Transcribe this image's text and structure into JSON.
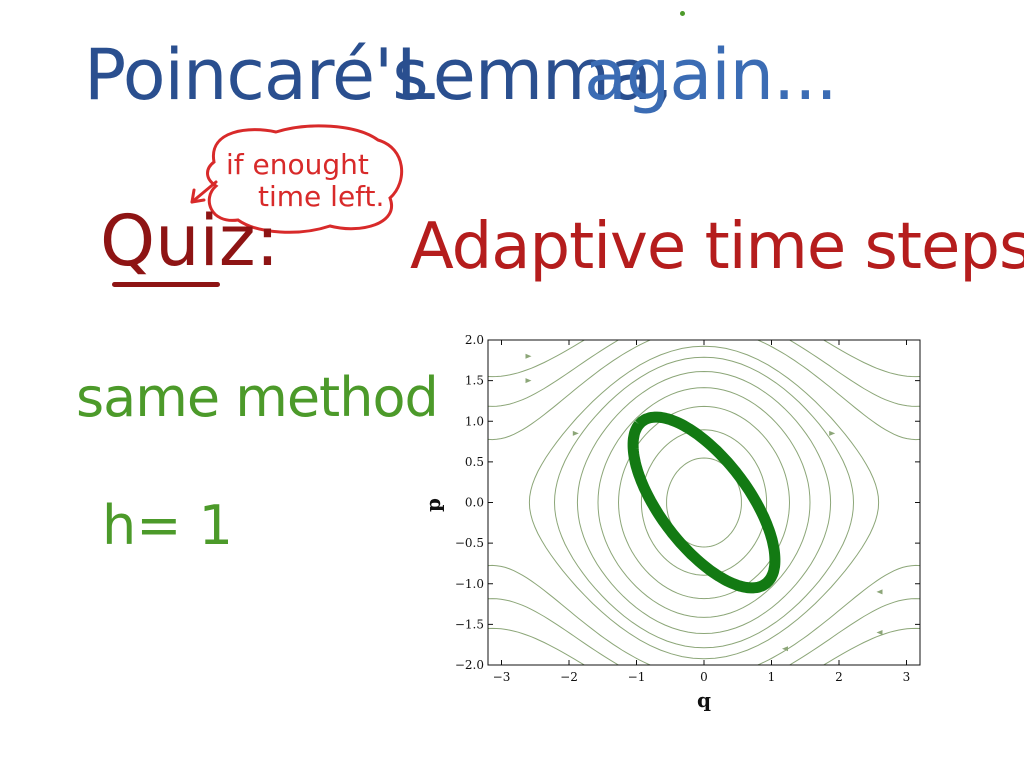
{
  "slide": {
    "title_part1": "Poincaré's",
    "title_part2": "Lemma,",
    "title_part3": "again...",
    "quiz_label": "Quiz:",
    "topic": "Adaptive time steps",
    "note_line1": "if enought",
    "note_line2": "time left.",
    "method_label": "same method",
    "step_label": "h= 1"
  },
  "colors": {
    "title": "#2a4f8f",
    "quiz": "#8e1414",
    "topic": "#b51d1d",
    "note": "#d82a2a",
    "method": "#4c9a2a",
    "stream": "#8ca678",
    "orbit": "#137a13"
  },
  "chart_data": {
    "type": "scatter",
    "title": "",
    "xlabel": "q",
    "ylabel": "p",
    "xlim": [
      -3.2,
      3.2
    ],
    "ylim": [
      -2.0,
      2.0
    ],
    "x_ticks": [
      -3,
      -2,
      -1,
      0,
      1,
      2,
      3
    ],
    "x_tick_labels": [
      "−3",
      "−2",
      "−1",
      "0",
      "1",
      "2",
      "3"
    ],
    "y_ticks": [
      -2.0,
      -1.5,
      -1.0,
      -0.5,
      0.0,
      0.5,
      1.0,
      1.5,
      2.0
    ],
    "y_tick_labels": [
      "−2.0",
      "−1.5",
      "−1.0",
      "−0.5",
      "0.0",
      "0.5",
      "1.0",
      "1.5",
      "2.0"
    ],
    "grid": false,
    "background": "streamplot of pendulum phase portrait",
    "series": [
      {
        "values": "closed orbit of numerical solution",
        "center": [
          0.0,
          0.0
        ],
        "semi_major": 1.36,
        "semi_minor": 0.6,
        "rotation_deg": 135
      }
    ]
  }
}
